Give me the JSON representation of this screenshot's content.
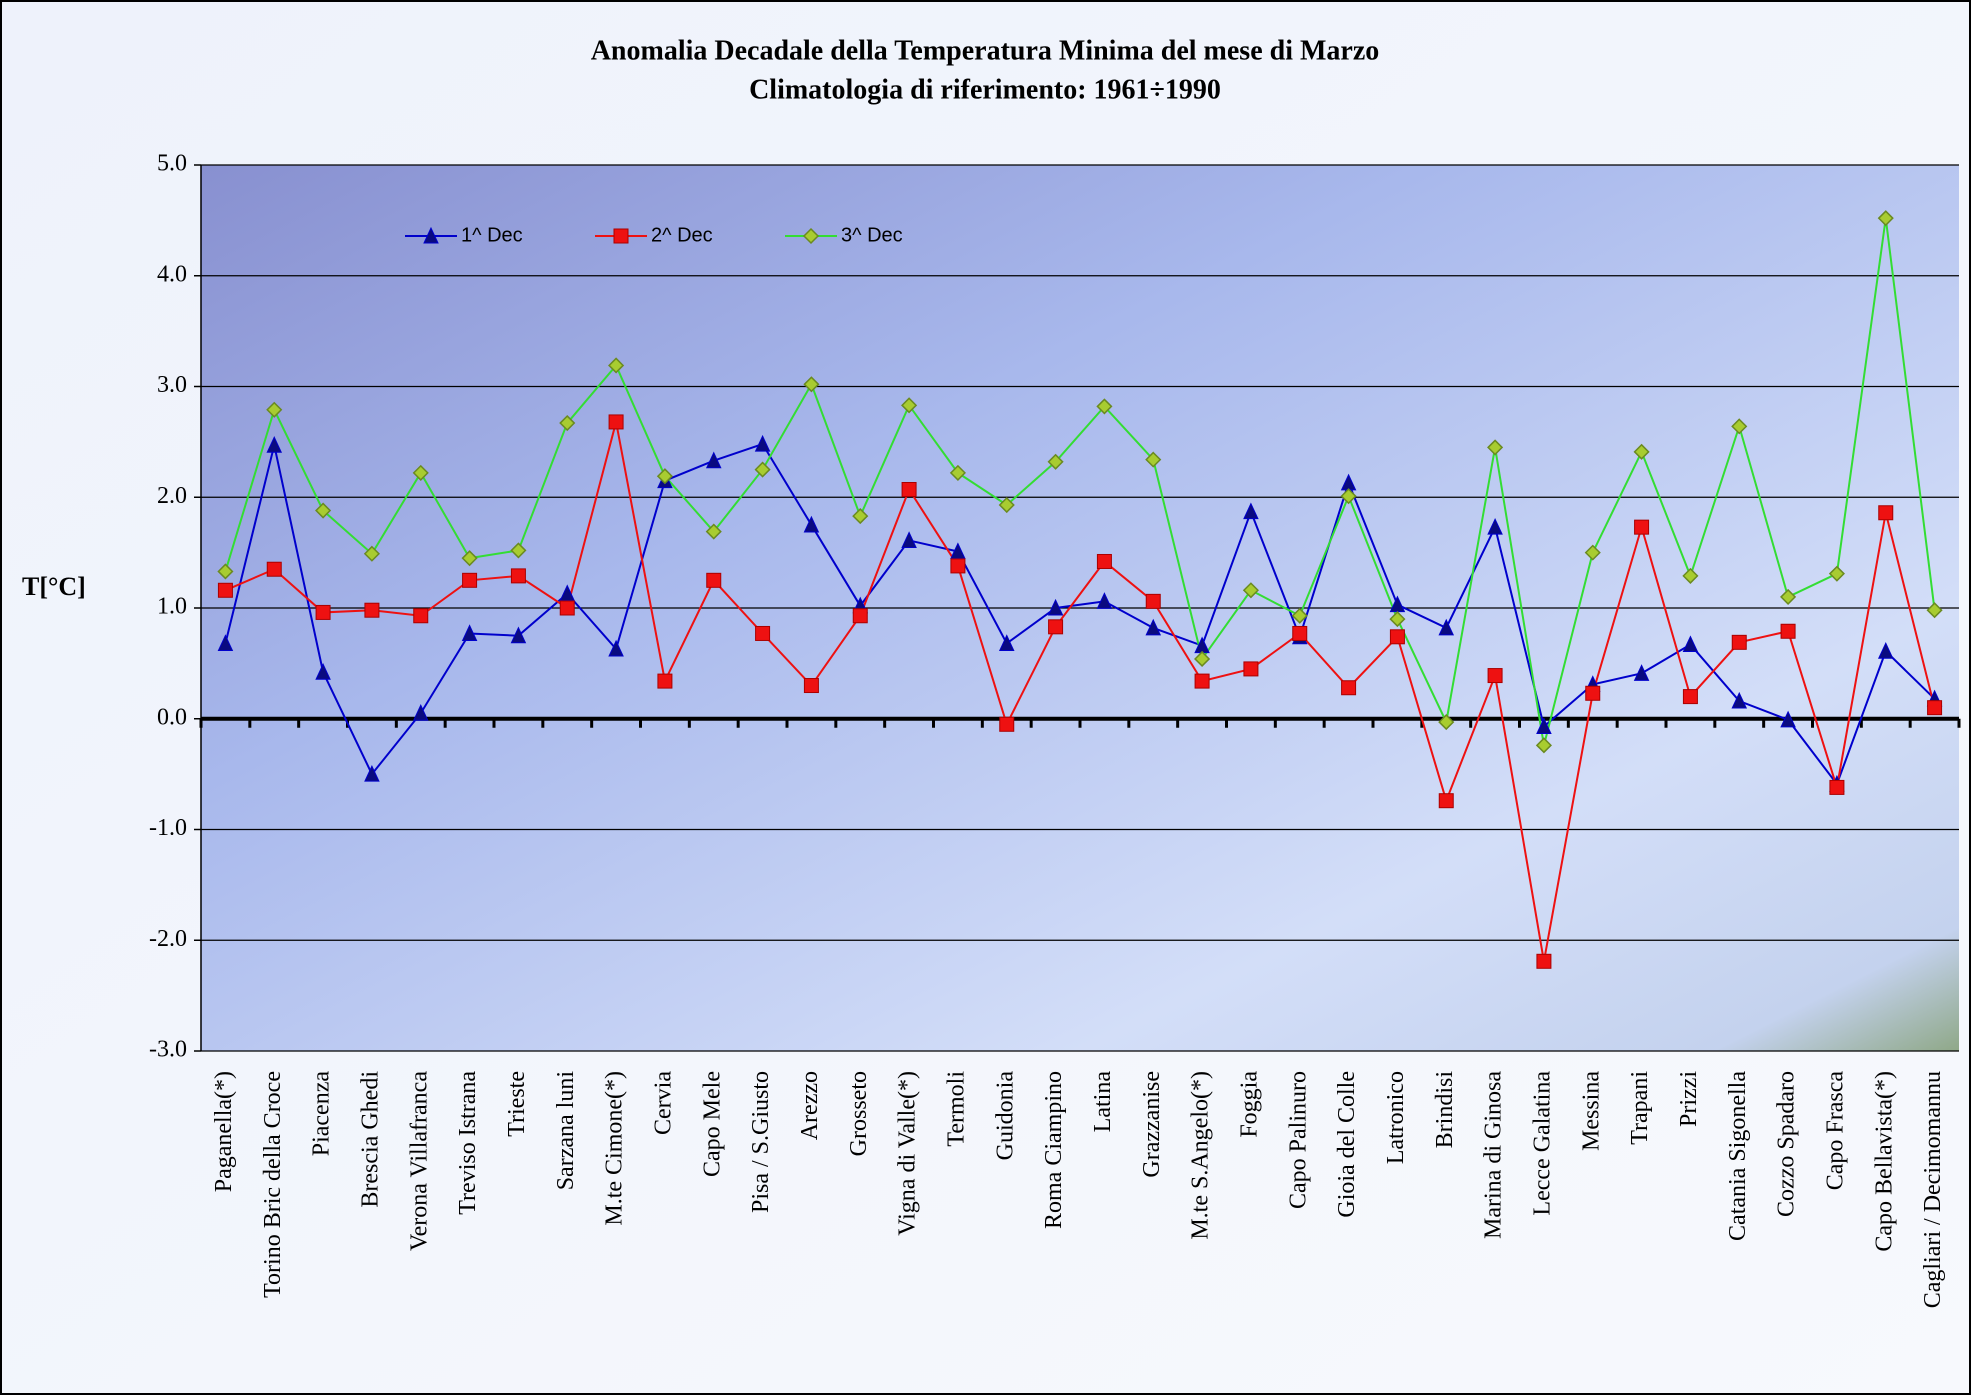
{
  "chart_data": {
    "type": "line",
    "title": "Anomalia Decadale della Temperatura Minima del mese di Marzo",
    "subtitle": "Climatologia di riferimento: 1961÷1990",
    "y_label": "T[°C]",
    "categories": [
      "Paganella(*)",
      "Torino Bric della Croce",
      "Piacenza",
      "Brescia Ghedi",
      "Verona Villafranca",
      "Treviso Istrana",
      "Trieste",
      "Sarzana luni",
      "M.te Cimone(*)",
      "Cervia",
      "Capo Mele",
      "Pisa / S.Giusto",
      "Arezzo",
      "Grosseto",
      "Vigna di Valle(*)",
      "Termoli",
      "Guidonia",
      "Roma Ciampino",
      "Latina",
      "Grazzanise",
      "M.te S.Angelo(*)",
      "Foggia",
      "Capo Palinuro",
      "Gioia del Colle",
      "Latronico",
      "Brindisi",
      "Marina di Ginosa",
      "Lecce Galatina",
      "Messina",
      "Trapani",
      "Prizzi",
      "Catania Sigonella",
      "Cozzo Spadaro",
      "Capo Frasca",
      "Capo Bellavista(*)",
      "Cagliari / Decimomannu"
    ],
    "series": [
      {
        "name": "1^ Dec",
        "color": "#0000cc",
        "marker": "triangle",
        "values": [
          0.68,
          2.47,
          0.42,
          -0.5,
          0.05,
          0.77,
          0.75,
          1.13,
          0.63,
          2.15,
          2.33,
          2.48,
          1.75,
          1.02,
          1.61,
          1.51,
          0.68,
          1.0,
          1.06,
          0.82,
          0.66,
          1.87,
          0.74,
          2.13,
          1.03,
          0.82,
          1.73,
          -0.07,
          0.31,
          0.41,
          0.67,
          0.16,
          -0.01,
          -0.59,
          0.61,
          0.18
        ]
      },
      {
        "name": "2^ Dec",
        "color": "#ee1111",
        "marker": "square",
        "values": [
          1.16,
          1.35,
          0.96,
          0.98,
          0.93,
          1.25,
          1.29,
          1.0,
          2.68,
          0.34,
          1.25,
          0.77,
          0.3,
          0.93,
          2.07,
          1.38,
          -0.05,
          0.83,
          1.42,
          1.06,
          0.34,
          0.45,
          0.77,
          0.28,
          0.74,
          -0.74,
          0.39,
          -2.19,
          0.23,
          1.73,
          0.2,
          0.69,
          0.79,
          -0.62,
          1.86,
          0.1
        ]
      },
      {
        "name": "3^ Dec",
        "color": "#33dd33",
        "marker": "diamond",
        "values": [
          1.33,
          2.79,
          1.88,
          1.49,
          2.22,
          1.45,
          1.52,
          2.67,
          3.19,
          2.19,
          1.69,
          2.25,
          3.02,
          1.83,
          2.83,
          2.22,
          1.93,
          2.32,
          2.82,
          2.34,
          0.54,
          1.16,
          0.93,
          2.01,
          0.9,
          -0.03,
          2.45,
          -0.24,
          1.5,
          2.41,
          1.29,
          2.64,
          1.1,
          1.31,
          4.52,
          0.98
        ]
      }
    ],
    "ylim": [
      -3,
      5
    ],
    "yticks": [
      {
        "value": -3,
        "label": "-3.0"
      },
      {
        "value": -2,
        "label": "-2.0"
      },
      {
        "value": -1,
        "label": "-1.0"
      },
      {
        "value": 0,
        "label": "0.0"
      },
      {
        "value": 1,
        "label": "1.0"
      },
      {
        "value": 2,
        "label": "2.0"
      },
      {
        "value": 3,
        "label": "3.0"
      },
      {
        "value": 4,
        "label": "4.0"
      },
      {
        "value": 5,
        "label": "5.0"
      }
    ],
    "grid": true,
    "legend": "top-left"
  }
}
